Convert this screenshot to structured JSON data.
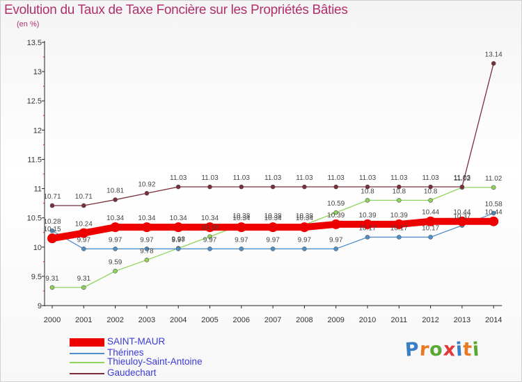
{
  "header": {
    "title": "Evolution du Taux de Taxe Foncière sur les Propriétés Bâties",
    "unit": "(en %)"
  },
  "logo": {
    "text": "Proxiti",
    "letter_colors": [
      "#3a7fc4",
      "#e77a22",
      "#5aa832",
      "#e23a3a",
      "#3a7fc4",
      "#e77a22",
      "#5aa832"
    ]
  },
  "chart_data": {
    "type": "line",
    "title": "Evolution du Taux de Taxe Foncière sur les Propriétés Bâties",
    "ylabel": "(en %)",
    "xlabel": "",
    "x": [
      "2000",
      "2001",
      "2002",
      "2003",
      "2004",
      "2005",
      "2006",
      "2007",
      "2008",
      "2009",
      "2010",
      "2011",
      "2012",
      "2013",
      "2014"
    ],
    "ylim": [
      9,
      13.5
    ],
    "yticks": [
      "9",
      "9.5",
      "10",
      "10.5",
      "11",
      "11.5",
      "12",
      "12.5",
      "13",
      "13.5"
    ],
    "grid": false,
    "legend": "bottom-left",
    "series": [
      {
        "name": "SAINT-MAUR",
        "color": "#ee0000",
        "values": [
          10.15,
          10.24,
          10.34,
          10.34,
          10.34,
          10.34,
          10.34,
          10.34,
          10.34,
          10.39,
          10.39,
          10.39,
          10.44,
          10.44,
          10.44
        ],
        "labels": [
          "10.15",
          "10.24",
          "10.34",
          "10.34",
          "10.34",
          "10.34",
          "10.34",
          "10.34",
          "10.34",
          "10.39",
          "10.39",
          "10.39",
          "10.44",
          "10.44",
          "10.44"
        ]
      },
      {
        "name": "Thérines",
        "color": "#4f8fc9",
        "values": [
          10.28,
          9.97,
          9.97,
          9.97,
          9.97,
          9.97,
          9.97,
          9.97,
          9.97,
          9.97,
          10.17,
          10.17,
          10.17,
          10.37,
          10.58
        ],
        "labels": [
          "10.28",
          "9.97",
          "9.97",
          "9.97",
          "9.97",
          "9.97",
          "9.97",
          "9.97",
          "9.97",
          "9.97",
          "10.17",
          "10.17",
          "10.17",
          "10.37",
          "10.58"
        ]
      },
      {
        "name": "Thieuloy-Saint-Antoine",
        "color": "#8fd45a",
        "values": [
          9.31,
          9.31,
          9.59,
          9.78,
          9.98,
          10.18,
          10.38,
          10.38,
          10.38,
          10.59,
          10.8,
          10.8,
          10.8,
          11.02,
          11.02
        ],
        "labels": [
          "9.31",
          "9.31",
          "9.59",
          "9.78",
          "9.98",
          "10.18",
          "10.38",
          "10.38",
          "10.38",
          "10.59",
          "10.8",
          "10.8",
          "10.8",
          "11.02",
          "11.02"
        ]
      },
      {
        "name": "Gaudechart",
        "color": "#7a2e3a",
        "values": [
          10.71,
          10.71,
          10.81,
          10.92,
          11.03,
          11.03,
          11.03,
          11.03,
          11.03,
          11.03,
          11.03,
          11.03,
          11.03,
          11.03,
          13.14
        ],
        "labels": [
          "10.71",
          "10.71",
          "10.81",
          "10.92",
          "11.03",
          "11.03",
          "11.03",
          "11.03",
          "11.03",
          "11.03",
          "11.03",
          "11.03",
          "11.03",
          "11.03",
          "13.14"
        ]
      }
    ]
  }
}
